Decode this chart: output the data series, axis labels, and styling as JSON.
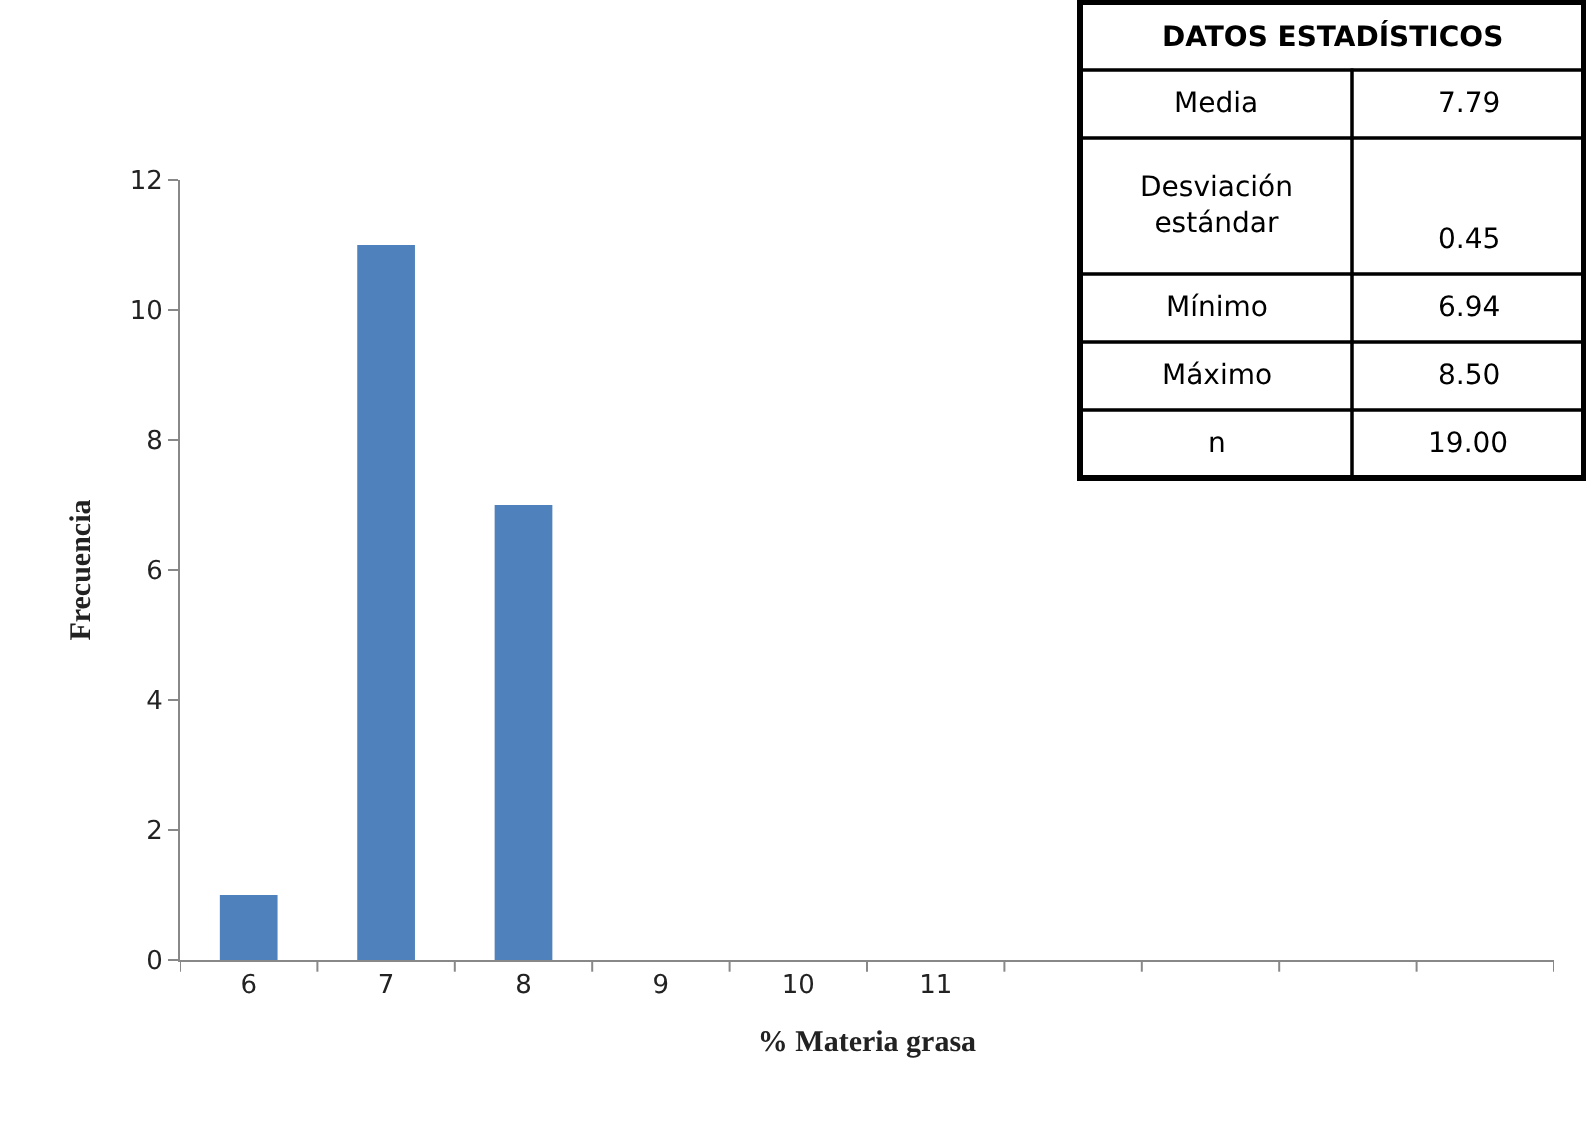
{
  "chart_data": {
    "type": "bar",
    "categories": [
      "6",
      "7",
      "8",
      "9",
      "10",
      "11",
      null,
      null,
      null,
      null
    ],
    "values": [
      1,
      11,
      7,
      0,
      0,
      0,
      0,
      0,
      0,
      0
    ],
    "color": "#4f81bd",
    "xlabel": "% Materia grasa",
    "ylabel": "Frecuencia",
    "ylim": [
      0,
      12
    ],
    "yticks": [
      0,
      2,
      4,
      6,
      8,
      10,
      12
    ],
    "legend": false,
    "annotations": [
      "DATOS ESTADÍSTICOS",
      "Media",
      "7.79",
      "Desviación\nestándar",
      "0.45",
      "Mínimo",
      "6.94",
      "Máximo",
      "8.50",
      "n",
      "19.00"
    ]
  }
}
